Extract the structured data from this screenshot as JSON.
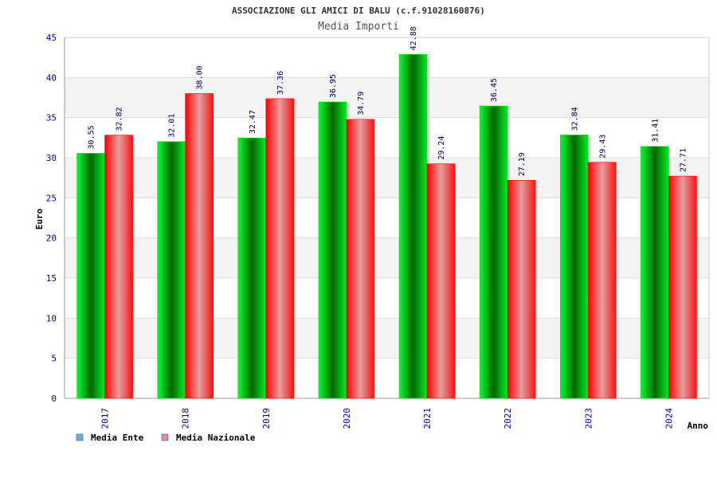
{
  "chart_data": {
    "type": "bar",
    "title": "ASSOCIAZIONE GLI AMICI DI BALU (c.f.91028160876)",
    "subtitle": "Media Importi",
    "xlabel": "Anno",
    "ylabel": "Euro",
    "ylim": [
      0,
      45
    ],
    "yticks": [
      "0",
      "5",
      "10",
      "15",
      "20",
      "25",
      "30",
      "35",
      "40",
      "45"
    ],
    "categories": [
      "2017",
      "2018",
      "2019",
      "2020",
      "2021",
      "2022",
      "2023",
      "2024"
    ],
    "series": [
      {
        "name": "Media Ente",
        "values": [
          30.55,
          32.01,
          32.47,
          36.95,
          42.88,
          36.45,
          32.84,
          31.41
        ],
        "labels": [
          "30.55",
          "32.01",
          "32.47",
          "36.95",
          "42.88",
          "36.45",
          "32.84",
          "31.41"
        ],
        "color": "#00cc00"
      },
      {
        "name": "Media Nazionale",
        "values": [
          32.82,
          38.0,
          37.36,
          34.79,
          29.24,
          27.19,
          29.43,
          27.71
        ],
        "labels": [
          "32.82",
          "38.00",
          "37.36",
          "34.79",
          "29.24",
          "27.19",
          "29.43",
          "27.71"
        ],
        "color": "#ff0000"
      }
    ],
    "legend": [
      {
        "label": "Media Ente",
        "color": "#66aaee"
      },
      {
        "label": "Media Nazionale",
        "color": "#dd88bb"
      }
    ],
    "legend_position": "bottom-left",
    "grid": true
  }
}
